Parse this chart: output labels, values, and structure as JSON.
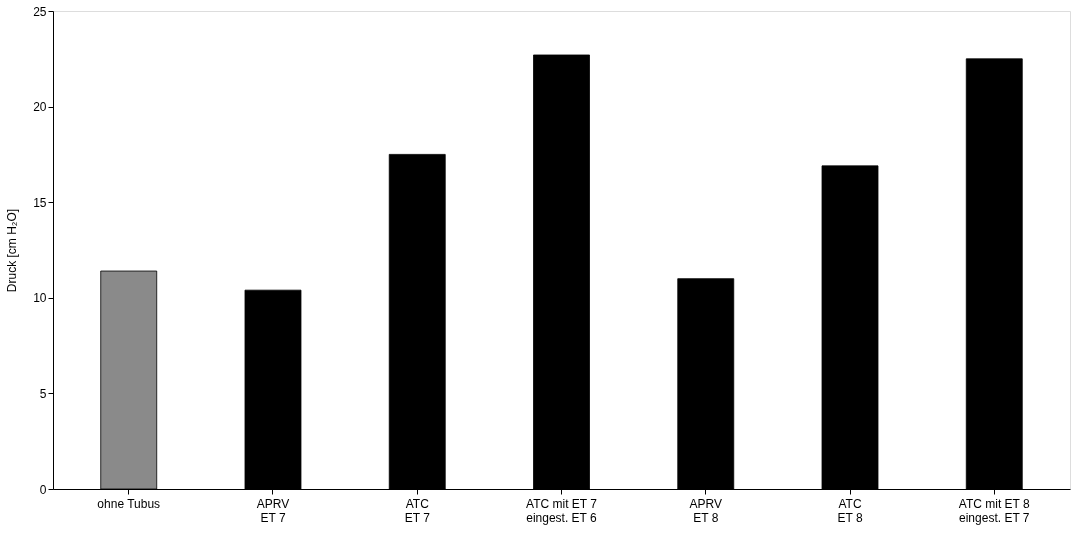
{
  "chart_data": {
    "type": "bar",
    "ylabel": "Druck [cm H₂O]",
    "categories": [
      "ohne Tubus",
      "APRV\nET 7",
      "ATC\nET 7",
      "ATC mit ET 7\neingest. ET 6",
      "APRV\nET 8",
      "ATC\nET 8",
      "ATC mit ET 8\neingest. ET 7"
    ],
    "values": [
      11.4,
      10.4,
      17.5,
      22.7,
      11.0,
      16.9,
      22.5
    ],
    "colors": [
      "#8a8a8a",
      "#000000",
      "#000000",
      "#000000",
      "#000000",
      "#000000",
      "#000000"
    ],
    "ylim": [
      0,
      25
    ],
    "yticks": [
      0,
      5,
      10,
      15,
      20,
      25
    ],
    "grid": false
  }
}
